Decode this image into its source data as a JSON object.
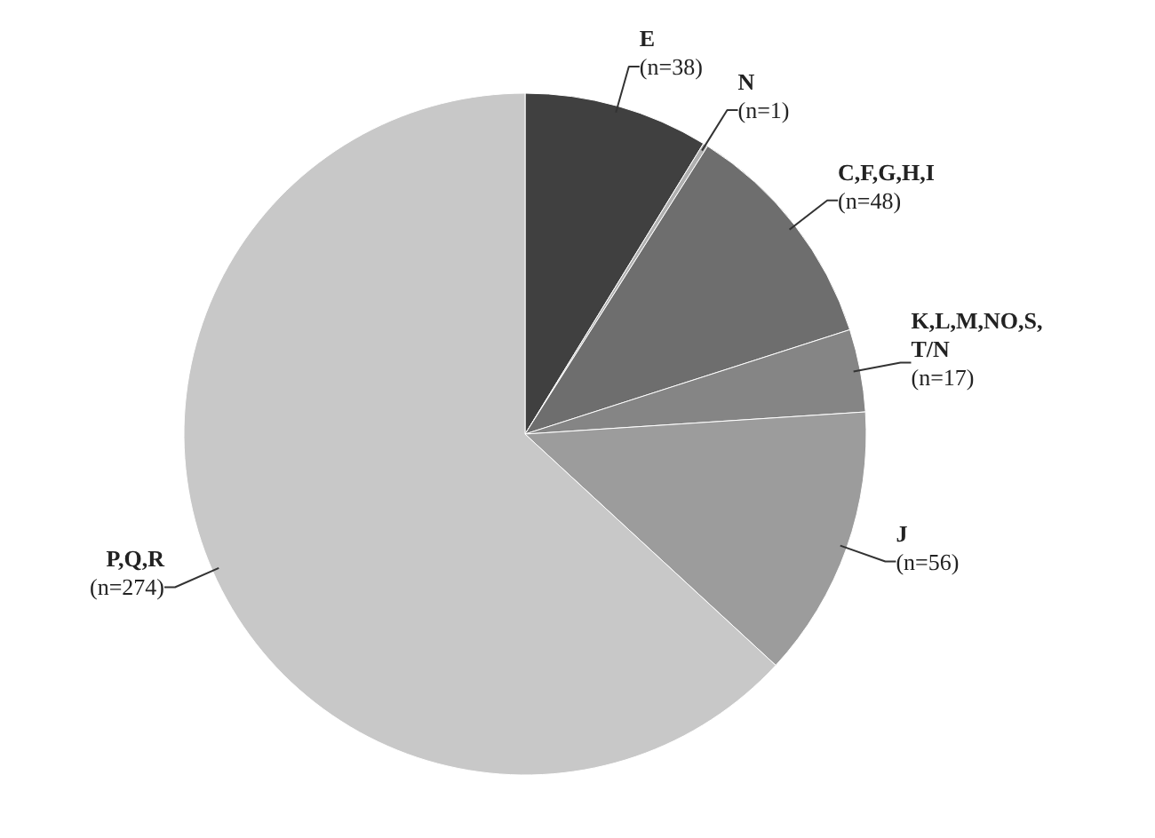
{
  "chart_data": {
    "type": "pie",
    "categories": [
      "E",
      "N",
      "C,F,G,H,I",
      "K,L,M,NO,S,T/N",
      "J",
      "P,Q,R"
    ],
    "values": [
      38,
      1,
      48,
      17,
      56,
      274
    ],
    "value_labels": [
      "(n=38)",
      "(n=1)",
      "(n=48)",
      "(n=17)",
      "(n=56)",
      "(n=274)"
    ],
    "colors": [
      "#404040",
      "#b0b0b0",
      "#6e6e6e",
      "#858585",
      "#9c9c9c",
      "#c8c8c8"
    ]
  }
}
